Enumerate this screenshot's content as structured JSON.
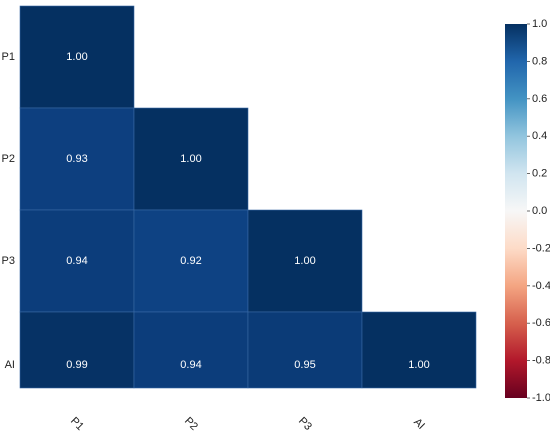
{
  "chart_data": {
    "type": "heatmap",
    "title": "",
    "rows": [
      "P1",
      "P2",
      "P3",
      "AI"
    ],
    "columns": [
      "P1",
      "P2",
      "P3",
      "AI"
    ],
    "values": [
      [
        1.0,
        null,
        null,
        null
      ],
      [
        0.93,
        1.0,
        null,
        null
      ],
      [
        0.94,
        0.92,
        1.0,
        null
      ],
      [
        0.99,
        0.94,
        0.95,
        1.0
      ]
    ],
    "value_labels": [
      [
        "1.00",
        "",
        "",
        ""
      ],
      [
        "0.93",
        "1.00",
        "",
        ""
      ],
      [
        "0.94",
        "0.92",
        "1.00",
        ""
      ],
      [
        "0.99",
        "0.94",
        "0.95",
        "1.00"
      ]
    ],
    "mask": "upper triangle hidden",
    "colorbar": {
      "colormap": "RdBu",
      "range": [
        -1.0,
        1.0
      ],
      "ticks": [
        1.0,
        0.8,
        0.6,
        0.4,
        0.2,
        0.0,
        -0.2,
        -0.4,
        -0.6,
        -0.8,
        -1.0
      ],
      "tick_labels": [
        "1.0",
        "0.8",
        "0.6",
        "0.4",
        "0.2",
        "0.0",
        "-0.2",
        "-0.4",
        "-0.6",
        "-0.8",
        "-1.0"
      ],
      "placement": "right"
    },
    "xtick_rotation": "diagonal"
  }
}
